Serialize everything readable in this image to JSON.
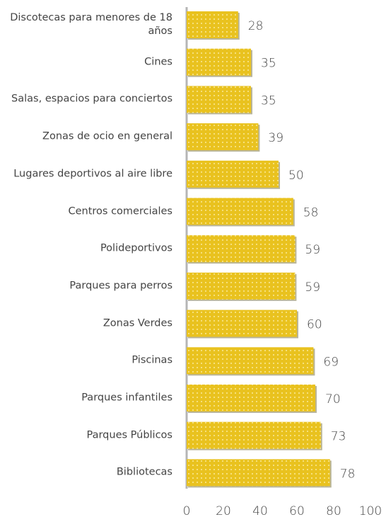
{
  "chart_data": {
    "type": "bar",
    "orientation": "horizontal",
    "categories": [
      "Discotecas para menores de 18 años",
      "Cines",
      "Salas, espacios para conciertos",
      "Zonas de ocio en general",
      "Lugares deportivos al aire libre",
      "Centros comerciales",
      "Polideportivos",
      "Parques para perros",
      "Zonas Verdes",
      "Piscinas",
      "Parques infantiles",
      "Parques Públicos",
      "Bibliotecas"
    ],
    "values": [
      28,
      35,
      35,
      39,
      50,
      58,
      59,
      59,
      60,
      69,
      70,
      73,
      78
    ],
    "color": "#e9c21f",
    "xlim": [
      0,
      100
    ],
    "xticks": [
      0,
      20,
      40,
      60,
      80,
      100
    ],
    "grid": false
  }
}
